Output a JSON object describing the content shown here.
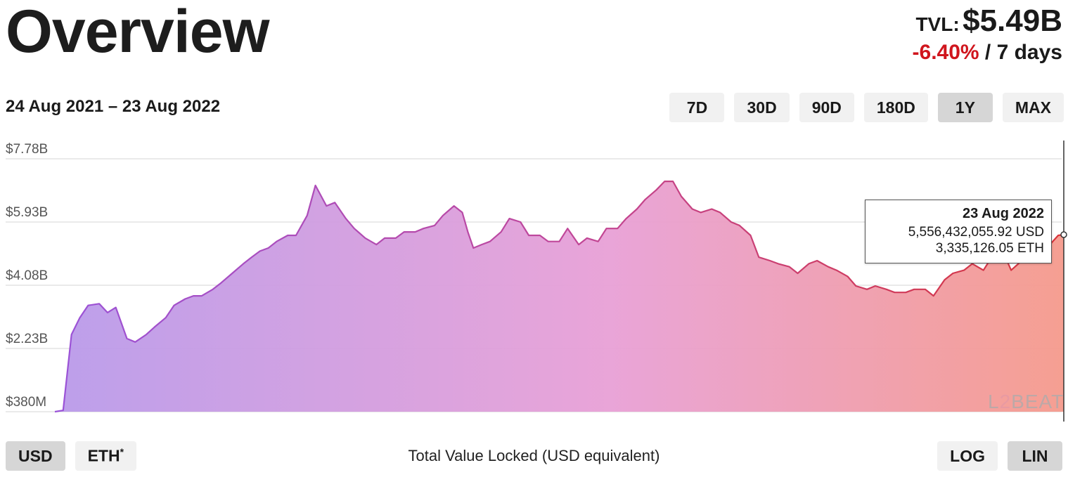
{
  "header": {
    "title": "Overview",
    "tvl_label": "TVL:",
    "tvl_value": "$5.49B",
    "change_value": "-6.40%",
    "change_period": "/ 7 days"
  },
  "date_range": "24 Aug 2021 – 23 Aug 2022",
  "range_buttons": [
    {
      "label": "7D",
      "active": false
    },
    {
      "label": "30D",
      "active": false
    },
    {
      "label": "90D",
      "active": false
    },
    {
      "label": "180D",
      "active": false
    },
    {
      "label": "1Y",
      "active": true
    },
    {
      "label": "MAX",
      "active": false
    }
  ],
  "currency_buttons": {
    "usd": "USD",
    "eth": "ETH",
    "eth_marker": "*"
  },
  "scale_buttons": {
    "log": "LOG",
    "lin": "LIN"
  },
  "tooltip": {
    "date": "23 Aug 2022",
    "usd": "5,556,432,055.92 USD",
    "eth": "3,335,126.05 ETH"
  },
  "logo": {
    "text_1": "L",
    "text_2": "2",
    "text_3": "BEAT"
  },
  "colors": {
    "gradient_start": "#b99aea",
    "gradient_mid": "#e8a0d6",
    "gradient_end": "#f59a8c",
    "line_start": "#9a52d8",
    "line_mid": "#c0479a",
    "line_end": "#d8343a",
    "negative": "#d0151d",
    "active_button": "#d6d6d6",
    "button": "#f1f1f1"
  },
  "chart_data": {
    "type": "area",
    "title": "",
    "xlabel": "Total Value Locked (USD equivalent)",
    "ylabel": "",
    "x_range": [
      "2021-08-24",
      "2022-08-23"
    ],
    "y_ticks": [
      {
        "value": 0.38,
        "label": "$380M"
      },
      {
        "value": 2.23,
        "label": "$2.23B"
      },
      {
        "value": 4.08,
        "label": "$4.08B"
      },
      {
        "value": 5.93,
        "label": "$5.93B"
      },
      {
        "value": 7.78,
        "label": "$7.78B"
      }
    ],
    "ylim": [
      0.38,
      7.78
    ],
    "scale": "linear",
    "grid": true,
    "series": [
      {
        "unit": "USD billions",
        "x": [
          "2021-08-24",
          "2021-08-27",
          "2021-08-30",
          "2021-09-02",
          "2021-09-05",
          "2021-09-09",
          "2021-09-12",
          "2021-09-15",
          "2021-09-19",
          "2021-09-22",
          "2021-09-26",
          "2021-09-29",
          "2021-10-03",
          "2021-10-06",
          "2021-10-10",
          "2021-10-13",
          "2021-10-16",
          "2021-10-20",
          "2021-10-23",
          "2021-10-27",
          "2021-10-31",
          "2021-11-03",
          "2021-11-06",
          "2021-11-09",
          "2021-11-12",
          "2021-11-16",
          "2021-11-19",
          "2021-11-23",
          "2021-11-26",
          "2021-11-30",
          "2021-12-03",
          "2021-12-07",
          "2021-12-10",
          "2021-12-14",
          "2021-12-18",
          "2021-12-21",
          "2021-12-25",
          "2021-12-28",
          "2022-01-01",
          "2022-01-04",
          "2022-01-08",
          "2022-01-11",
          "2022-01-15",
          "2022-01-18",
          "2022-01-20",
          "2022-01-22",
          "2022-01-25",
          "2022-01-28",
          "2022-02-01",
          "2022-02-04",
          "2022-02-08",
          "2022-02-11",
          "2022-02-15",
          "2022-02-18",
          "2022-02-22",
          "2022-02-25",
          "2022-03-01",
          "2022-03-04",
          "2022-03-08",
          "2022-03-11",
          "2022-03-15",
          "2022-03-18",
          "2022-03-22",
          "2022-03-25",
          "2022-03-29",
          "2022-04-01",
          "2022-04-04",
          "2022-04-07",
          "2022-04-11",
          "2022-04-14",
          "2022-04-18",
          "2022-04-21",
          "2022-04-25",
          "2022-04-28",
          "2022-05-02",
          "2022-05-05",
          "2022-05-09",
          "2022-05-12",
          "2022-05-16",
          "2022-05-19",
          "2022-05-23",
          "2022-05-26",
          "2022-05-30",
          "2022-06-02",
          "2022-06-06",
          "2022-06-09",
          "2022-06-13",
          "2022-06-16",
          "2022-06-20",
          "2022-06-23",
          "2022-06-27",
          "2022-06-30",
          "2022-07-04",
          "2022-07-07",
          "2022-07-11",
          "2022-07-14",
          "2022-07-18",
          "2022-07-21",
          "2022-07-25",
          "2022-07-28",
          "2022-08-01",
          "2022-08-04",
          "2022-08-08",
          "2022-08-11",
          "2022-08-15",
          "2022-08-18",
          "2022-08-21",
          "2022-08-23"
        ],
        "values": [
          0.38,
          0.42,
          2.64,
          3.13,
          3.49,
          3.54,
          3.28,
          3.43,
          2.52,
          2.42,
          2.64,
          2.86,
          3.13,
          3.49,
          3.68,
          3.77,
          3.77,
          3.96,
          4.15,
          4.43,
          4.71,
          4.9,
          5.08,
          5.17,
          5.36,
          5.54,
          5.54,
          6.12,
          7.0,
          6.4,
          6.5,
          6.03,
          5.74,
          5.46,
          5.27,
          5.46,
          5.46,
          5.64,
          5.64,
          5.74,
          5.83,
          6.12,
          6.4,
          6.21,
          5.64,
          5.17,
          5.27,
          5.36,
          5.64,
          6.03,
          5.93,
          5.54,
          5.54,
          5.36,
          5.36,
          5.74,
          5.27,
          5.46,
          5.36,
          5.74,
          5.74,
          6.02,
          6.31,
          6.59,
          6.87,
          7.12,
          7.12,
          6.68,
          6.31,
          6.21,
          6.31,
          6.21,
          5.93,
          5.83,
          5.54,
          4.9,
          4.8,
          4.71,
          4.62,
          4.43,
          4.71,
          4.8,
          4.62,
          4.52,
          4.34,
          4.06,
          3.96,
          4.06,
          3.96,
          3.87,
          3.87,
          3.96,
          3.96,
          3.77,
          4.24,
          4.43,
          4.52,
          4.71,
          4.52,
          4.9,
          5.08,
          4.52,
          4.81,
          5.08,
          5.36,
          5.27,
          5.54,
          5.56
        ]
      }
    ],
    "tooltip_point": {
      "x": "2022-08-23",
      "value": 5.56
    }
  }
}
